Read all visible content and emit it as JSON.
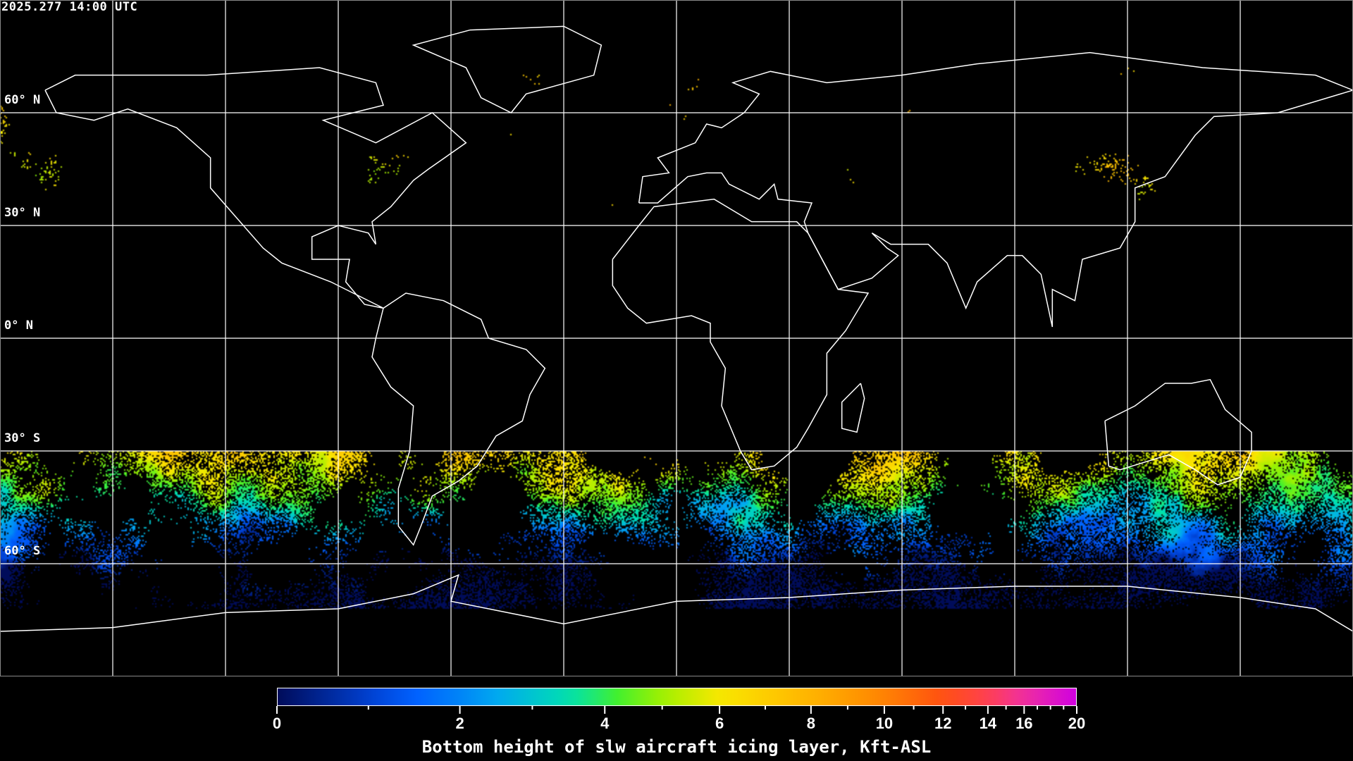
{
  "title": "2025.277 14:00 UTC",
  "lat_labels": [
    "60° N",
    "30° N",
    "0° N",
    "30° S",
    "60° S"
  ],
  "colorbar": {
    "title": "Bottom height of slw aircraft icing layer, Kft-ASL",
    "tick_labels": [
      "0",
      "2",
      "4",
      "6",
      "8",
      "10",
      "12",
      "14",
      "16",
      "20"
    ],
    "range": [
      0,
      20
    ],
    "colors": [
      "#000c5a",
      "#0040d0",
      "#0060ff",
      "#00a8f0",
      "#00e0b0",
      "#40f030",
      "#a0f000",
      "#f8e800",
      "#ffc000",
      "#ff9000",
      "#ff5010",
      "#ff4050",
      "#f030a0",
      "#d000e0"
    ]
  },
  "chart_data": {
    "type": "heatmap",
    "title": "2025.277 14:00 UTC",
    "projection": "equirectangular",
    "lon_range": [
      -180,
      180
    ],
    "lat_range": [
      -90,
      90
    ],
    "gridlines": "every 30 degrees",
    "colorbar_label": "Bottom height of slw aircraft icing layer, Kft-ASL",
    "value_range": [
      0,
      20
    ],
    "units": "Kft-ASL"
  }
}
